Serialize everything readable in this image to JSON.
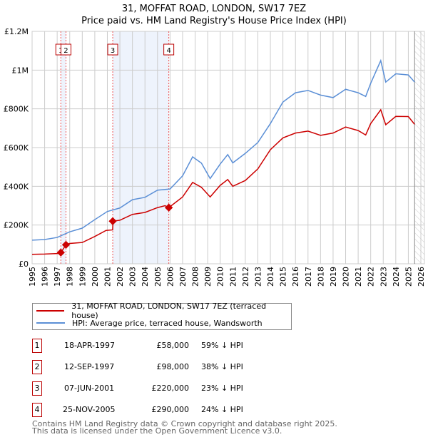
{
  "chart_data": {
    "type": "line",
    "title": "31, MOFFAT ROAD, LONDON, SW17 7EZ",
    "subtitle": "Price paid vs. HM Land Registry's House Price Index (HPI)",
    "xlim": [
      1995,
      2026
    ],
    "ylim": [
      0,
      1200000
    ],
    "x_ticks": [
      "1995",
      "1996",
      "1997",
      "1998",
      "1999",
      "2000",
      "2001",
      "2002",
      "2003",
      "2004",
      "2005",
      "2006",
      "2007",
      "2008",
      "2009",
      "2010",
      "2011",
      "2012",
      "2013",
      "2014",
      "2015",
      "2016",
      "2017",
      "2018",
      "2019",
      "2020",
      "2021",
      "2022",
      "2023",
      "2024",
      "2025",
      "2026"
    ],
    "y_ticks": [
      {
        "v": 0,
        "label": "£0"
      },
      {
        "v": 200000,
        "label": "£200K"
      },
      {
        "v": 400000,
        "label": "£400K"
      },
      {
        "v": 600000,
        "label": "£600K"
      },
      {
        "v": 800000,
        "label": "£800K"
      },
      {
        "v": 1000000,
        "label": "£1M"
      },
      {
        "v": 1200000,
        "label": "£1.2M"
      }
    ],
    "grid": true,
    "series": [
      {
        "name": "31, MOFFAT ROAD, LONDON, SW17 7EZ (terraced house)",
        "color": "#cc0000",
        "x": [
          1995,
          1996,
          1997,
          1997.29,
          1997.3,
          1997.7,
          1998,
          1999,
          2000,
          2000.9,
          2001.42,
          2001.45,
          2002,
          2003,
          2004,
          2005,
          2005.6,
          2005.9,
          2007,
          2007.8,
          2008.5,
          2009.2,
          2010,
          2010.6,
          2011,
          2012,
          2013,
          2014,
          2015,
          2016,
          2017,
          2018,
          2019,
          2020,
          2021,
          2021.6,
          2022,
          2022.8,
          2023.2,
          2024,
          2025,
          2025.5
        ],
        "y": [
          49000,
          50000,
          53000,
          58000,
          58000,
          98000,
          105000,
          110000,
          141000,
          172000,
          175000,
          220000,
          225000,
          255000,
          265000,
          290000,
          300000,
          290000,
          345000,
          420000,
          395000,
          345000,
          405000,
          435000,
          400000,
          430000,
          490000,
          589000,
          650000,
          675000,
          685000,
          663000,
          675000,
          706000,
          688000,
          665000,
          724000,
          795000,
          718000,
          761000,
          760000,
          720000
        ]
      },
      {
        "name": "HPI: Average price, terraced house, Wandsworth",
        "color": "#5b8fd6",
        "x": [
          1995,
          1996,
          1997,
          1998,
          1999,
          2000,
          2001,
          2002,
          2003,
          2004,
          2005,
          2006,
          2007,
          2007.8,
          2008.5,
          2009.2,
          2010,
          2010.6,
          2011,
          2012,
          2013,
          2014,
          2015,
          2016,
          2017,
          2018,
          2019,
          2020,
          2021,
          2021.6,
          2022,
          2022.8,
          2023.2,
          2024,
          2025,
          2025.5
        ],
        "y": [
          122000,
          125000,
          136000,
          165000,
          184000,
          228000,
          270000,
          288000,
          331000,
          343000,
          380000,
          386000,
          454000,
          552000,
          520000,
          440000,
          515000,
          564000,
          521000,
          570000,
          626000,
          724000,
          835000,
          883000,
          895000,
          871000,
          858000,
          901000,
          883000,
          864000,
          932000,
          1049000,
          938000,
          981000,
          975000,
          938000
        ]
      }
    ],
    "sales": [
      {
        "n": "1",
        "date": "18-APR-1997",
        "x": 1997.29,
        "price": "£58,000",
        "value": 58000,
        "hpi": "59% ↓ HPI"
      },
      {
        "n": "2",
        "date": "12-SEP-1997",
        "x": 1997.7,
        "price": "£98,000",
        "value": 98000,
        "hpi": "38% ↓ HPI"
      },
      {
        "n": "3",
        "date": "07-JUN-2001",
        "x": 2001.43,
        "price": "£220,000",
        "value": 220000,
        "hpi": "23% ↓ HPI"
      },
      {
        "n": "4",
        "date": "25-NOV-2005",
        "x": 2005.9,
        "price": "£290,000",
        "value": 290000,
        "hpi": "24% ↓ HPI"
      }
    ],
    "shaded_ranges": [
      [
        1997.29,
        1997.7
      ],
      [
        2001.43,
        2005.9
      ]
    ],
    "forecast_start": 2025.5
  },
  "header": {
    "title": "31, MOFFAT ROAD, LONDON, SW17 7EZ",
    "subtitle": "Price paid vs. HM Land Registry's House Price Index (HPI)"
  },
  "legend": {
    "property": "31, MOFFAT ROAD, LONDON, SW17 7EZ (terraced house)",
    "hpi": "HPI: Average price, terraced house, Wandsworth"
  },
  "footer": {
    "line1": "Contains HM Land Registry data © Crown copyright and database right 2025.",
    "line2": "This data is licensed under the Open Government Licence v3.0."
  }
}
